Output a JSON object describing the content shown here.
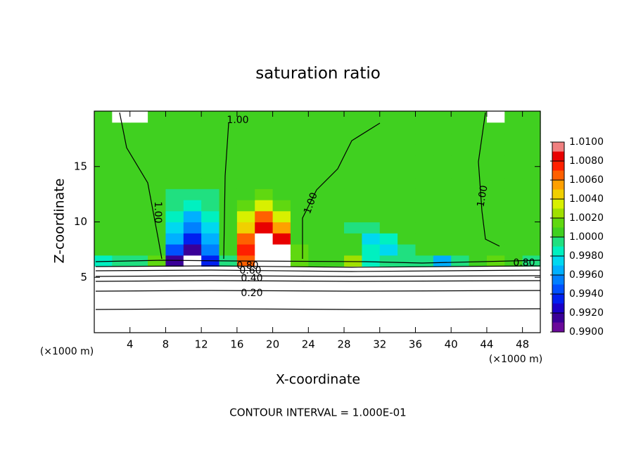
{
  "chart_data": {
    "type": "contour",
    "title": "saturation ratio",
    "x_label": "X-coordinate",
    "y_label": "Z-coordinate",
    "x_unit": "(×1000 m)",
    "y_unit": "(×1000 m)",
    "footnote": "CONTOUR INTERVAL = 1.000E-01",
    "xlim": [
      0,
      50
    ],
    "ylim": [
      0,
      20
    ],
    "xticks": [
      4,
      8,
      12,
      16,
      20,
      24,
      28,
      32,
      36,
      40,
      44,
      48
    ],
    "yticks": [
      5,
      10,
      15
    ],
    "x": [
      1,
      3,
      5,
      7,
      9,
      11,
      13,
      15,
      17,
      19,
      21,
      23,
      25,
      27,
      29,
      31,
      33,
      35,
      37,
      39,
      41,
      43,
      45,
      47,
      49
    ],
    "y": [
      0.5,
      1.5,
      2.5,
      3.5,
      4.5,
      5.5,
      6.5,
      7.5,
      8.5,
      9.5,
      10.5,
      11.5,
      12.5,
      13.5,
      14.5,
      15.5,
      16.5,
      17.5,
      18.5,
      19.5
    ],
    "z": [
      [
        0.05,
        0.05,
        0.05,
        0.05,
        0.05,
        0.05,
        0.05,
        0.05,
        0.05,
        0.05,
        0.05,
        0.05,
        0.05,
        0.05,
        0.05,
        0.05,
        0.05,
        0.05,
        0.05,
        0.05,
        0.05,
        0.05,
        0.05,
        0.05,
        0.05
      ],
      [
        0.1,
        0.1,
        0.1,
        0.1,
        0.1,
        0.1,
        0.1,
        0.1,
        0.1,
        0.1,
        0.1,
        0.1,
        0.1,
        0.1,
        0.1,
        0.1,
        0.1,
        0.1,
        0.1,
        0.1,
        0.1,
        0.1,
        0.1,
        0.1,
        0.1
      ],
      [
        0.15,
        0.15,
        0.15,
        0.15,
        0.15,
        0.15,
        0.15,
        0.15,
        0.15,
        0.15,
        0.15,
        0.15,
        0.15,
        0.15,
        0.15,
        0.15,
        0.15,
        0.15,
        0.15,
        0.15,
        0.15,
        0.15,
        0.15,
        0.15,
        0.15
      ],
      [
        0.2,
        0.2,
        0.2,
        0.2,
        0.2,
        0.2,
        0.2,
        0.2,
        0.2,
        0.2,
        0.2,
        0.2,
        0.2,
        0.2,
        0.2,
        0.2,
        0.2,
        0.2,
        0.2,
        0.2,
        0.2,
        0.2,
        0.2,
        0.2,
        0.2
      ],
      [
        0.35,
        0.35,
        0.35,
        0.35,
        0.35,
        0.35,
        0.35,
        0.35,
        0.35,
        0.35,
        0.35,
        0.35,
        0.35,
        0.35,
        0.35,
        0.35,
        0.35,
        0.35,
        0.35,
        0.35,
        0.35,
        0.35,
        0.35,
        0.35,
        0.35
      ],
      [
        0.55,
        0.55,
        0.55,
        0.55,
        0.55,
        0.55,
        0.55,
        0.55,
        0.55,
        0.55,
        0.55,
        0.55,
        0.55,
        0.55,
        0.55,
        0.55,
        0.55,
        0.55,
        0.55,
        0.55,
        0.55,
        0.55,
        0.55,
        0.55,
        0.55
      ],
      [
        0.9985,
        0.9995,
        0.9995,
        1.0015,
        0.9915,
        0.9895,
        0.9935,
        0.9995,
        1.0065,
        1.0125,
        1.0115,
        1.0015,
        1.0005,
        1.0005,
        1.0025,
        0.9985,
        0.9995,
        0.9995,
        0.9995,
        0.9965,
        0.9995,
        1.0005,
        1.0015,
        1.0005,
        0.9995
      ],
      [
        1.0005,
        1.0005,
        1.0005,
        1.0005,
        0.9945,
        0.9915,
        0.9955,
        1.0005,
        1.0075,
        1.0125,
        1.0115,
        1.0015,
        1.0005,
        1.0005,
        1.0005,
        0.9985,
        0.9975,
        0.9995,
        1.0005,
        1.0005,
        1.0005,
        1.0005,
        1.0005,
        1.0005,
        1.0005
      ],
      [
        1.0005,
        1.0005,
        1.0005,
        1.0005,
        0.9965,
        0.9935,
        0.9965,
        1.0005,
        1.0065,
        1.0115,
        1.0085,
        1.0005,
        1.0005,
        1.0005,
        1.0005,
        0.9975,
        0.9985,
        1.0005,
        1.0005,
        1.0005,
        1.0005,
        1.0005,
        1.0005,
        1.0005,
        1.0005
      ],
      [
        1.0005,
        1.0005,
        1.0005,
        1.0005,
        0.9975,
        0.9955,
        0.9975,
        1.0005,
        1.0045,
        1.0085,
        1.0055,
        1.0005,
        1.0005,
        1.0005,
        0.9995,
        0.9995,
        1.0005,
        1.0005,
        1.0005,
        1.0005,
        1.0005,
        1.0005,
        1.0005,
        1.0005,
        1.0005
      ],
      [
        1.0005,
        1.0005,
        1.0005,
        1.0005,
        0.9985,
        0.9965,
        0.9985,
        1.0005,
        1.0035,
        1.0065,
        1.0035,
        1.0005,
        1.0005,
        1.0005,
        1.0005,
        1.0005,
        1.0005,
        1.0005,
        1.0005,
        1.0005,
        1.0005,
        1.0005,
        1.0005,
        1.0005,
        1.0005
      ],
      [
        1.0005,
        1.0005,
        1.0005,
        1.0005,
        0.9995,
        0.9985,
        0.9995,
        1.0005,
        1.0015,
        1.0035,
        1.0015,
        1.0005,
        1.0005,
        1.0005,
        1.0005,
        1.0005,
        1.0005,
        1.0005,
        1.0005,
        1.0005,
        1.0005,
        1.0005,
        1.0005,
        1.0005,
        1.0005
      ],
      [
        1.0005,
        1.0005,
        1.0005,
        1.0005,
        0.9995,
        0.9995,
        0.9995,
        1.0005,
        1.0005,
        1.0015,
        1.0005,
        1.0005,
        1.0005,
        1.0005,
        1.0005,
        1.0005,
        1.0005,
        1.0005,
        1.0005,
        1.0005,
        1.0005,
        1.0005,
        1.0005,
        1.0005,
        1.0005
      ],
      [
        1.0005,
        1.0005,
        1.0005,
        1.0005,
        1.0005,
        1.0005,
        1.0005,
        1.0005,
        1.0005,
        1.0005,
        1.0005,
        1.0005,
        1.0005,
        1.0005,
        1.0005,
        1.0005,
        1.0005,
        1.0005,
        1.0005,
        1.0005,
        1.0005,
        1.0005,
        1.0005,
        1.0005,
        1.0005
      ],
      [
        1.0005,
        1.0005,
        1.0005,
        1.0005,
        1.0005,
        1.0005,
        1.0005,
        1.0005,
        1.0005,
        1.0005,
        1.0005,
        1.0005,
        1.0005,
        1.0005,
        1.0005,
        1.0005,
        1.0005,
        1.0005,
        1.0005,
        1.0005,
        1.0005,
        1.0005,
        1.0005,
        1.0005,
        1.0005
      ],
      [
        1.0005,
        1.0005,
        1.0005,
        1.0005,
        1.0005,
        1.0005,
        1.0005,
        1.0005,
        1.0005,
        1.0005,
        1.0005,
        1.0005,
        1.0005,
        1.0005,
        1.0005,
        1.0005,
        1.0005,
        1.0005,
        1.0005,
        1.0005,
        1.0005,
        1.0005,
        1.0005,
        1.0005,
        1.0005
      ],
      [
        1.0005,
        1.0005,
        1.0005,
        1.0005,
        1.0005,
        1.0005,
        1.0005,
        1.0005,
        1.0005,
        1.0005,
        1.0005,
        1.0005,
        1.0005,
        1.0005,
        1.0005,
        1.0005,
        1.0005,
        1.0005,
        1.0005,
        1.0005,
        1.0005,
        1.0005,
        1.0005,
        1.0005,
        1.0005
      ],
      [
        1.0005,
        1.0005,
        1.0005,
        1.0005,
        1.0005,
        1.0005,
        1.0005,
        1.0005,
        1.0005,
        1.0005,
        1.0005,
        1.0005,
        1.0005,
        1.0005,
        1.0005,
        1.0005,
        1.0005,
        1.0005,
        1.0005,
        1.0005,
        1.0005,
        1.0005,
        1.0005,
        1.0005,
        1.0005
      ],
      [
        1.0005,
        1.0005,
        1.0005,
        1.0005,
        1.0005,
        1.0005,
        1.0005,
        1.0005,
        1.0005,
        1.0005,
        1.0005,
        1.0005,
        1.0005,
        1.0005,
        1.0005,
        1.0005,
        1.0005,
        1.0005,
        1.0005,
        1.0005,
        1.0005,
        1.0005,
        1.0005,
        1.0005,
        1.0005
      ],
      [
        1.0005,
        0.98,
        0.98,
        1.0005,
        1.0005,
        1.0005,
        1.0005,
        1.0005,
        1.0005,
        1.0005,
        1.0005,
        1.0005,
        1.0005,
        1.0005,
        1.0005,
        1.0005,
        1.0005,
        1.0005,
        1.0005,
        1.0005,
        1.0005,
        1.0005,
        0.98,
        1.0005,
        1.0005
      ]
    ],
    "colorbar_lim": [
      0.99,
      1.01
    ],
    "colorbar_ticks": [
      {
        "value": 0.99,
        "label": "0.9900"
      },
      {
        "value": 0.992,
        "label": "0.9920"
      },
      {
        "value": 0.994,
        "label": "0.9940"
      },
      {
        "value": 0.996,
        "label": "0.9960"
      },
      {
        "value": 0.998,
        "label": "0.9980"
      },
      {
        "value": 1.0,
        "label": "1.0000"
      },
      {
        "value": 1.002,
        "label": "1.0020"
      },
      {
        "value": 1.004,
        "label": "1.0040"
      },
      {
        "value": 1.006,
        "label": "1.0060"
      },
      {
        "value": 1.008,
        "label": "1.0080"
      },
      {
        "value": 1.01,
        "label": "1.0100"
      }
    ],
    "colors": [
      "#6a0a9a",
      "#3a0098",
      "#1a00c8",
      "#0020f0",
      "#0050ff",
      "#0080ff",
      "#00b0ff",
      "#00d8f0",
      "#00f0c0",
      "#20e080",
      "#40d020",
      "#60d810",
      "#a0e000",
      "#d8f000",
      "#f0d000",
      "#ffa000",
      "#ff6000",
      "#ff2000",
      "#e80000",
      "#f08080"
    ],
    "contour_labels": [
      "1.00",
      "1.00",
      "1.00",
      "1.00",
      "0.80",
      "0.60",
      "0.40",
      "0.20",
      "0.80"
    ]
  }
}
